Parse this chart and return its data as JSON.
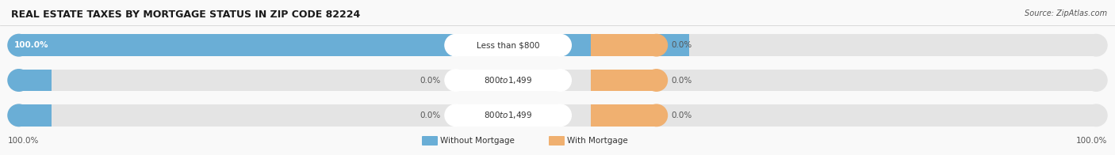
{
  "title": "REAL ESTATE TAXES BY MORTGAGE STATUS IN ZIP CODE 82224",
  "source": "Source: ZipAtlas.com",
  "rows": [
    {
      "label": "Less than $800",
      "without_mortgage": 100.0,
      "with_mortgage": 0.0,
      "without_pct_bar": 0.62,
      "with_pct_bar": 0.06
    },
    {
      "label": "$800 to $1,499",
      "without_mortgage": 0.0,
      "with_mortgage": 0.0,
      "without_pct_bar": 0.04,
      "with_pct_bar": 0.06
    },
    {
      "label": "$800 to $1,499",
      "without_mortgage": 0.0,
      "with_mortgage": 0.0,
      "without_pct_bar": 0.04,
      "with_pct_bar": 0.06
    }
  ],
  "color_without": "#6aaed6",
  "color_with": "#f0b070",
  "bg_bar": "#e4e4e4",
  "bg_figure": "#f9f9f9",
  "bg_label": "#ffffff",
  "left_axis_label": "100.0%",
  "right_axis_label": "100.0%",
  "legend_without": "Without Mortgage",
  "legend_with": "With Mortgage",
  "title_fontsize": 9,
  "source_fontsize": 7,
  "label_fontsize": 7.5,
  "value_fontsize": 7.5
}
